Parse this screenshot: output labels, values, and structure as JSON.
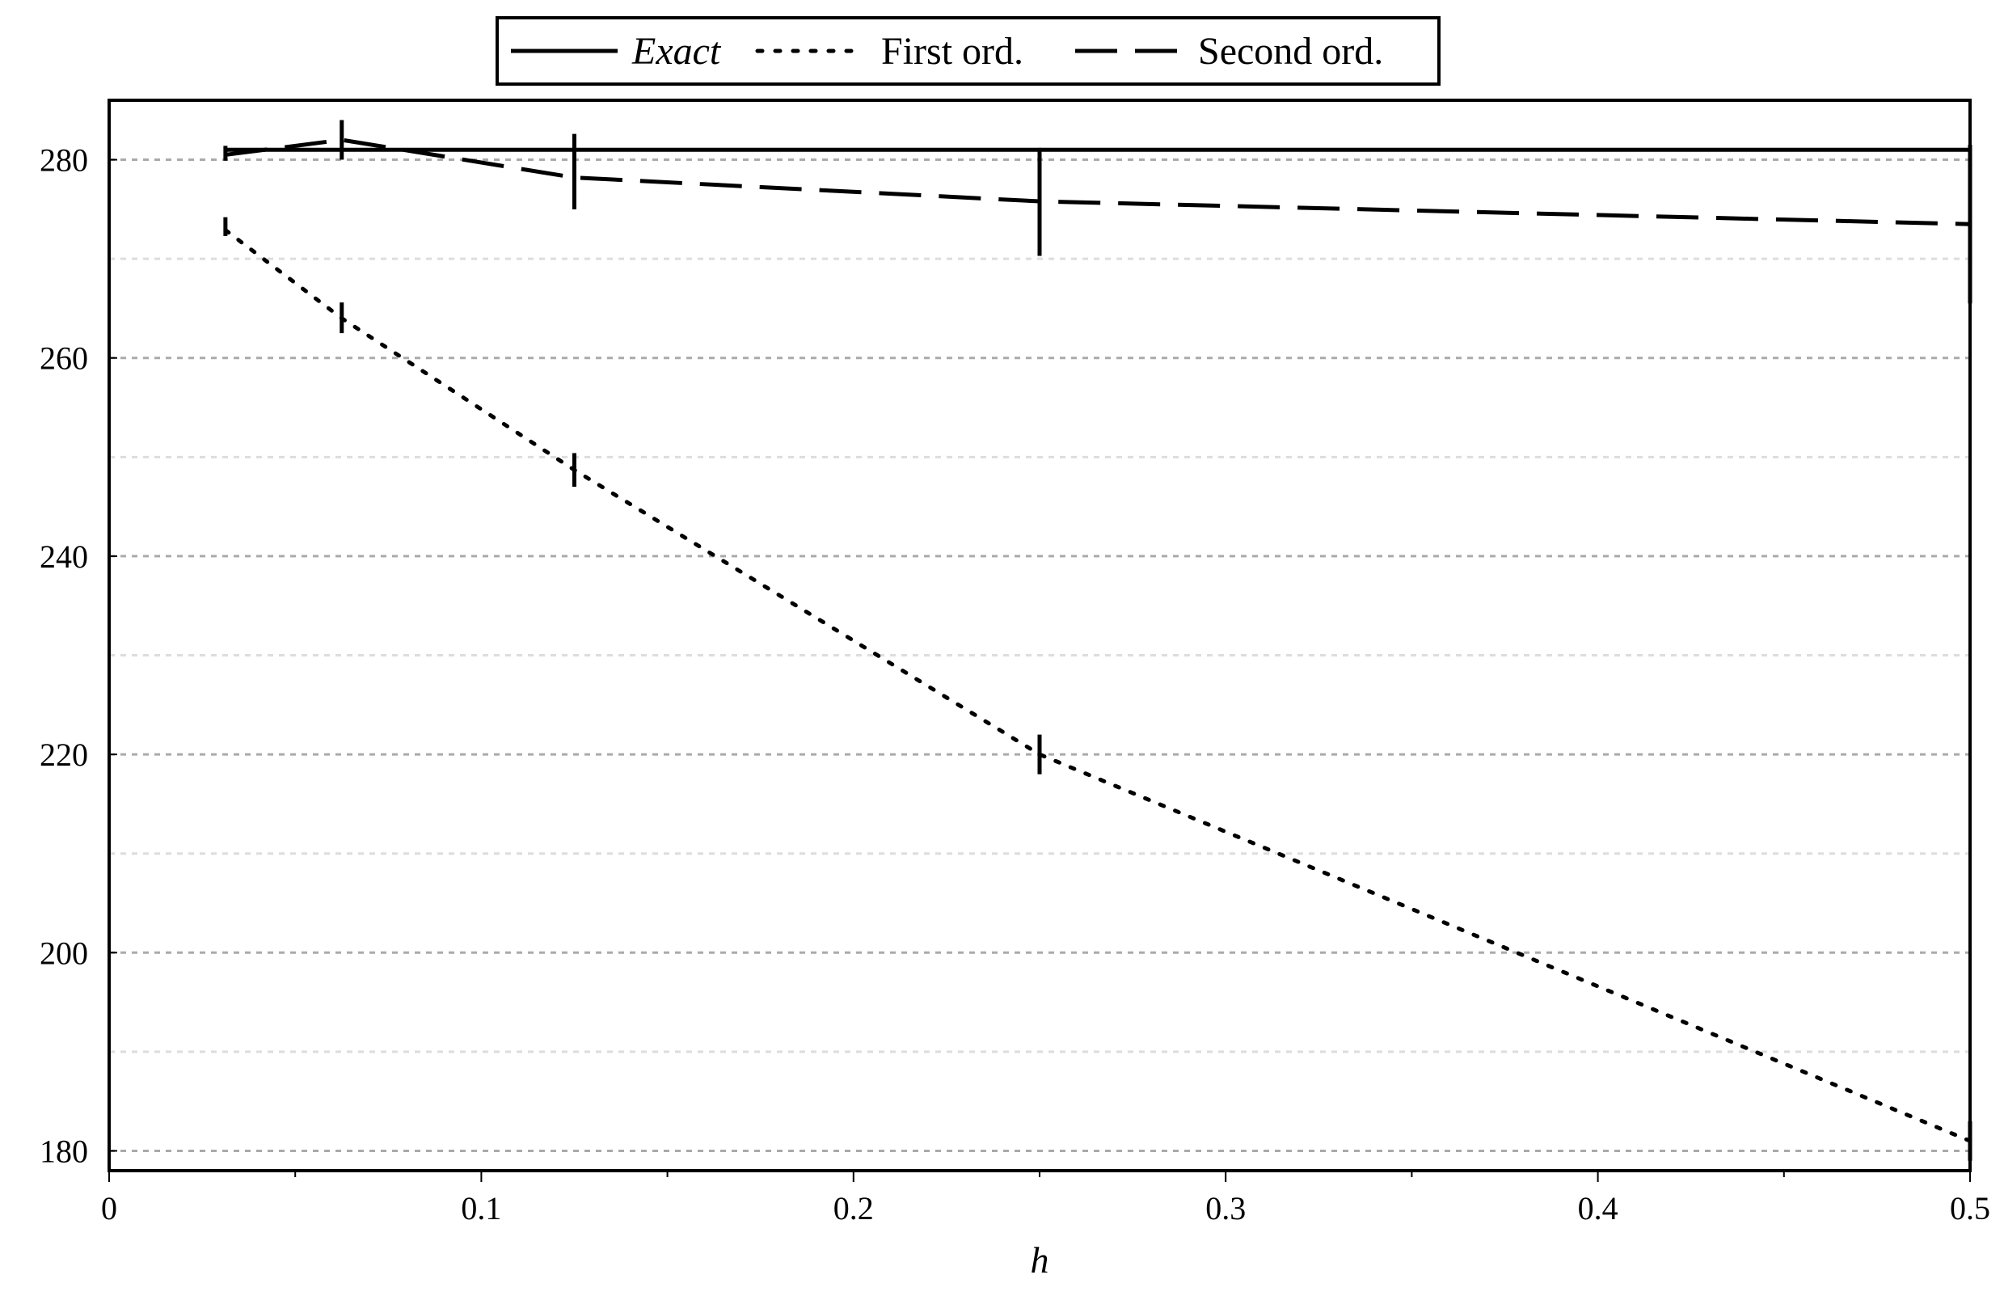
{
  "chart_data": {
    "type": "line",
    "title": "",
    "xlabel": "h",
    "ylabel": "",
    "xlim": [
      0,
      0.5
    ],
    "ylim": [
      178,
      286
    ],
    "x_ticks": [
      "0",
      "0.1",
      "0.2",
      "0.3",
      "0.4",
      "0.5"
    ],
    "y_ticks": [
      "180",
      "200",
      "220",
      "240",
      "260",
      "280"
    ],
    "grid": "horizontal dotted",
    "legend_position": "top-center",
    "series": [
      {
        "name": "Exact",
        "style": "solid",
        "color": "#000000",
        "x": [
          0.03125,
          0.0625,
          0.125,
          0.25,
          0.5
        ],
        "y": [
          281,
          281,
          281,
          281,
          281
        ]
      },
      {
        "name": "First ord.",
        "style": "dotted",
        "color": "#000000",
        "x": [
          0.03125,
          0.0625,
          0.125,
          0.25,
          0.5
        ],
        "y": [
          272.9,
          264,
          248.7,
          220,
          181
        ]
      },
      {
        "name": "Second ord.",
        "style": "dashed",
        "color": "#000000",
        "x": [
          0.03125,
          0.0625,
          0.125,
          0.25,
          0.5
        ],
        "y": [
          280.5,
          282,
          278.2,
          275.8,
          273.5
        ]
      }
    ],
    "error_bars": [
      {
        "x": 0.03125,
        "y_low": 279.9,
        "y_high": 281.4
      },
      {
        "x": 0.0625,
        "y_low": 280,
        "y_high": 284
      },
      {
        "x": 0.125,
        "y_low": 275,
        "y_high": 282.6
      },
      {
        "x": 0.25,
        "y_low": 270.3,
        "y_high": 281.2
      },
      {
        "x": 0.5,
        "y_low": 265.5,
        "y_high": 281.5
      },
      {
        "x": 0.03125,
        "y_low": 272.3,
        "y_high": 274.2
      },
      {
        "x": 0.0625,
        "y_low": 262.5,
        "y_high": 265.6
      },
      {
        "x": 0.125,
        "y_low": 247,
        "y_high": 250.4
      },
      {
        "x": 0.25,
        "y_low": 218,
        "y_high": 222
      },
      {
        "x": 0.5,
        "y_low": 179,
        "y_high": 183
      }
    ]
  }
}
